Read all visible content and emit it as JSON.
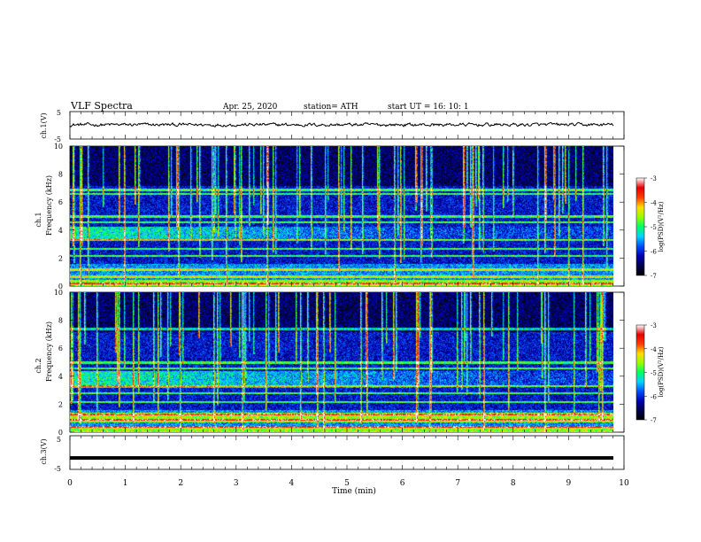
{
  "header": {
    "title": "VLF  Spectra",
    "date": "Apr. 25, 2020",
    "station": "station= ATH",
    "start_ut": "start  UT  =    16: 10: 1"
  },
  "chart_data": [
    {
      "type": "line",
      "panel": "ch1-waveform",
      "ylabel": "ch.1(V)",
      "ylim": [
        -5,
        5
      ],
      "yticks": [
        "5",
        "-5"
      ],
      "xlim": [
        0,
        10
      ],
      "series": [
        {
          "values_description_only": false,
          "mean": 0.2,
          "amplitude": 0.6
        }
      ],
      "line_color": "#000000"
    },
    {
      "type": "heatmap",
      "panel": "ch1-spectrogram",
      "ylabel": "ch.1\nFrequency  (kHz)",
      "ylim": [
        0,
        10
      ],
      "yticks": [
        "0",
        "2",
        "4",
        "6",
        "8",
        "10"
      ],
      "xlim": [
        0,
        9.8
      ],
      "colorbar": {
        "label": "log(PSD)(V²/Hz)",
        "range": [
          -7,
          -3
        ],
        "ticks": [
          "-3",
          "-4",
          "-5",
          "-6",
          "-7"
        ]
      },
      "features": {
        "persistent_bands_khz": [
          0.2,
          0.7,
          1.2,
          2.2,
          2.7,
          3.3,
          4.6,
          5.0,
          6.6,
          6.9
        ],
        "hiss_band_khz": [
          3.3,
          4.3
        ],
        "sferic_count_approx": 90
      }
    },
    {
      "type": "heatmap",
      "panel": "ch2-spectrogram",
      "ylabel": "ch.2\nFrequency  (kHz)",
      "ylim": [
        0,
        10
      ],
      "yticks": [
        "0",
        "2",
        "4",
        "6",
        "8",
        "10"
      ],
      "xlim": [
        0,
        9.8
      ],
      "colorbar": {
        "label": "log(PSD)(V²/Hz)",
        "range": [
          -7,
          -3
        ],
        "ticks": [
          "-3",
          "-4",
          "-5",
          "-6",
          "-7"
        ]
      },
      "features": {
        "persistent_bands_khz": [
          0.4,
          0.9,
          1.3,
          2.2,
          2.8,
          3.3,
          4.6,
          5.0,
          7.4
        ],
        "hiss_band_khz": [
          3.2,
          4.4
        ],
        "strong_band_khz": [
          0.7,
          1.4
        ],
        "sferic_count_approx": 90
      }
    },
    {
      "type": "line",
      "panel": "ch3-waveform",
      "ylabel": "ch.3(V)",
      "ylim": [
        -5,
        5
      ],
      "yticks": [
        "5",
        "-5"
      ],
      "xlim": [
        0,
        10
      ],
      "series": [
        {
          "constant_value": -1.6
        }
      ],
      "line_color": "#000000"
    }
  ],
  "xaxis": {
    "label": "Time  (min)",
    "ticks": [
      "0",
      "1",
      "2",
      "3",
      "4",
      "5",
      "6",
      "7",
      "8",
      "9",
      "10"
    ]
  },
  "colors": {
    "colormap": [
      "#000000",
      "#000050",
      "#0000b4",
      "#0050ff",
      "#00d2ff",
      "#00ff64",
      "#96ff00",
      "#ffdc00",
      "#ff3c00",
      "#e60000",
      "#ffffff"
    ]
  }
}
